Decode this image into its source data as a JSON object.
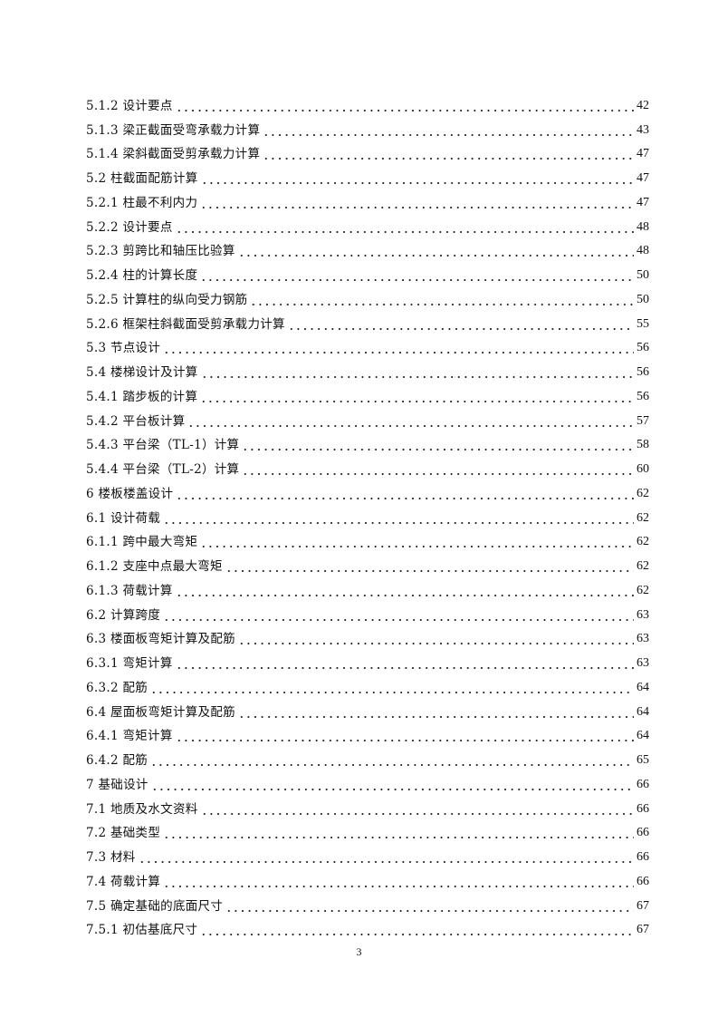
{
  "toc": [
    {
      "label": "5.1.2 设计要点",
      "page": "42"
    },
    {
      "label": "5.1.3 梁正截面受弯承载力计算",
      "page": "43"
    },
    {
      "label": "5.1.4 梁斜截面受剪承载力计算",
      "page": "47"
    },
    {
      "label": "5.2 柱截面配筋计算",
      "page": "47"
    },
    {
      "label": "5.2.1 柱最不利内力",
      "page": "47"
    },
    {
      "label": "5.2.2 设计要点",
      "page": "48"
    },
    {
      "label": "5.2.3 剪跨比和轴压比验算",
      "page": "48"
    },
    {
      "label": "5.2.4 柱的计算长度",
      "page": "50"
    },
    {
      "label": "5.2.5 计算柱的纵向受力钢筋",
      "page": "50"
    },
    {
      "label": "5.2.6 框架柱斜截面受剪承载力计算",
      "page": "55"
    },
    {
      "label": "5.3 节点设计",
      "page": "56"
    },
    {
      "label": "5.4 楼梯设计及计算",
      "page": "56"
    },
    {
      "label": "5.4.1 踏步板的计算",
      "page": "56"
    },
    {
      "label": "5.4.2 平台板计算",
      "page": "57"
    },
    {
      "label": "5.4.3 平台梁（TL-1）计算",
      "page": "58"
    },
    {
      "label": "5.4.4 平台梁（TL-2）计算",
      "page": "60"
    },
    {
      "label": "6 楼板楼盖设计",
      "page": "62"
    },
    {
      "label": "6.1 设计荷载",
      "page": "62"
    },
    {
      "label": "6.1.1 跨中最大弯矩",
      "page": "62"
    },
    {
      "label": "6.1.2 支座中点最大弯矩",
      "page": "62"
    },
    {
      "label": "6.1.3 荷载计算",
      "page": "62"
    },
    {
      "label": "6.2 计算跨度",
      "page": "63"
    },
    {
      "label": "6.3 楼面板弯矩计算及配筋",
      "page": "63"
    },
    {
      "label": "6.3.1 弯矩计算",
      "page": "63"
    },
    {
      "label": "6.3.2  配筋",
      "page": "64"
    },
    {
      "label": "6.4 屋面板弯矩计算及配筋",
      "page": "64"
    },
    {
      "label": "6.4.1 弯矩计算",
      "page": "64"
    },
    {
      "label": "6.4.2 配筋",
      "page": "65"
    },
    {
      "label": "7 基础设计",
      "page": "66"
    },
    {
      "label": "7.1 地质及水文资料",
      "page": "66"
    },
    {
      "label": "7.2 基础类型",
      "page": "66"
    },
    {
      "label": "7.3 材料",
      "page": "66"
    },
    {
      "label": "7.4 荷载计算",
      "page": "66"
    },
    {
      "label": "7.5 确定基础的底面尺寸",
      "page": "67"
    },
    {
      "label": "7.5.1 初估基底尺寸",
      "page": "67"
    }
  ],
  "page_number": "3"
}
